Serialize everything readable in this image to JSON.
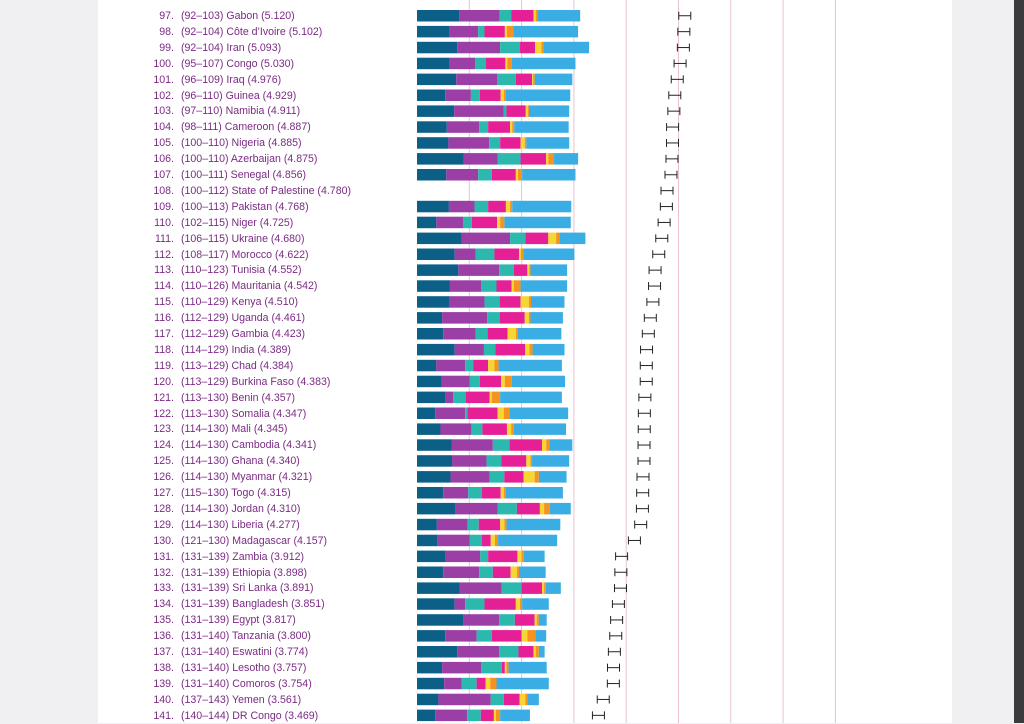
{
  "chart_data": {
    "type": "bar",
    "stacked": true,
    "orientation": "horizontal",
    "grid": true,
    "colors": {
      "text": "#7b2a84",
      "grid": "#e8c3cf",
      "segments": [
        "#0c5f86",
        "#9b3ea6",
        "#2bb8ad",
        "#e51f95",
        "#f6d633",
        "#f4931e",
        "#3aaee4"
      ]
    },
    "rows": [
      {
        "rank": "97.",
        "range": "(92–103)",
        "country": "Gabon",
        "score": "(5.120)",
        "total": 5.12,
        "segments": [
          0.81,
          0.77,
          0.22,
          0.43,
          0.04,
          0.03,
          0.82
        ]
      },
      {
        "rank": "98.",
        "range": "(92–104)",
        "country": "Côte d’Ivoire",
        "score": "(5.102)",
        "total": 5.102,
        "segments": [
          0.62,
          0.55,
          0.12,
          0.39,
          0.04,
          0.12,
          1.24
        ]
      },
      {
        "rank": "99.",
        "range": "(92–104)",
        "country": "Iran",
        "score": "(5.093)",
        "total": 5.093,
        "segments": [
          0.77,
          0.82,
          0.38,
          0.29,
          0.12,
          0.04,
          0.87
        ]
      },
      {
        "rank": "100.",
        "range": "(95–107)",
        "country": "Congo",
        "score": "(5.030)",
        "total": 5.03,
        "segments": [
          0.62,
          0.49,
          0.21,
          0.37,
          0.04,
          0.08,
          1.22
        ]
      },
      {
        "rank": "101.",
        "range": "(96–109)",
        "country": "Iraq",
        "score": "(4.976)",
        "total": 4.976,
        "segments": [
          0.75,
          0.78,
          0.36,
          0.31,
          0.02,
          0.03,
          0.72
        ]
      },
      {
        "rank": "102.",
        "range": "(96–110)",
        "country": "Guinea",
        "score": "(4.929)",
        "total": 4.929,
        "segments": [
          0.54,
          0.49,
          0.17,
          0.4,
          0.06,
          0.04,
          1.23
        ]
      },
      {
        "rank": "103.",
        "range": "(97–110)",
        "country": "Namibia",
        "score": "(4.911)",
        "total": 4.911,
        "segments": [
          0.71,
          0.95,
          0.05,
          0.37,
          0.04,
          0.02,
          0.77
        ]
      },
      {
        "rank": "104.",
        "range": "(98–111)",
        "country": "Cameroon",
        "score": "(4.887)",
        "total": 4.887,
        "segments": [
          0.57,
          0.62,
          0.17,
          0.42,
          0.04,
          0.04,
          1.04
        ]
      },
      {
        "rank": "105.",
        "range": "(100–110)",
        "country": "Nigeria",
        "score": "(4.885)",
        "total": 4.885,
        "segments": [
          0.6,
          0.78,
          0.21,
          0.39,
          0.08,
          0.03,
          0.82
        ]
      },
      {
        "rank": "106.",
        "range": "(100–110)",
        "country": "Azerbaijan",
        "score": "(4.875)",
        "total": 4.875,
        "segments": [
          0.89,
          0.65,
          0.44,
          0.49,
          0.04,
          0.11,
          0.46
        ]
      },
      {
        "rank": "107.",
        "range": "(100–111)",
        "country": "Senegal",
        "score": "(4.856)",
        "total": 4.856,
        "segments": [
          0.56,
          0.61,
          0.26,
          0.46,
          0.04,
          0.08,
          1.02
        ]
      },
      {
        "rank": "108.",
        "range": "(100–112)",
        "country": "State of Palestine",
        "score": "(4.780)",
        "total": 4.78,
        "segments": []
      },
      {
        "rank": "109.",
        "range": "(100–113)",
        "country": "Pakistan",
        "score": "(4.768)",
        "total": 4.768,
        "segments": [
          0.61,
          0.49,
          0.26,
          0.34,
          0.08,
          0.04,
          1.13
        ]
      },
      {
        "rank": "110.",
        "range": "(102–115)",
        "country": "Niger",
        "score": "(4.725)",
        "total": 4.725,
        "segments": [
          0.37,
          0.51,
          0.17,
          0.48,
          0.06,
          0.08,
          1.27
        ]
      },
      {
        "rank": "111.",
        "range": "(106–115)",
        "country": "Ukraine",
        "score": "(4.680)",
        "total": 4.68,
        "segments": [
          0.85,
          0.93,
          0.29,
          0.44,
          0.15,
          0.06,
          0.5
        ]
      },
      {
        "rank": "112.",
        "range": "(108–117)",
        "country": "Morocco",
        "score": "(4.622)",
        "total": 4.622,
        "segments": [
          0.72,
          0.4,
          0.36,
          0.47,
          0.04,
          0.04,
          0.98
        ]
      },
      {
        "rank": "113.",
        "range": "(110–123)",
        "country": "Tunisia",
        "score": "(4.552)",
        "total": 4.552,
        "segments": [
          0.79,
          0.78,
          0.28,
          0.26,
          0.04,
          0.02,
          0.7
        ]
      },
      {
        "rank": "114.",
        "range": "(110–126)",
        "country": "Mauritania",
        "score": "(4.542)",
        "total": 4.542,
        "segments": [
          0.63,
          0.6,
          0.29,
          0.29,
          0.04,
          0.13,
          0.89
        ]
      },
      {
        "rank": "115.",
        "range": "(110–129)",
        "country": "Kenya",
        "score": "(4.510)",
        "total": 4.51,
        "segments": [
          0.62,
          0.67,
          0.29,
          0.4,
          0.16,
          0.04,
          0.64
        ]
      },
      {
        "rank": "116.",
        "range": "(112–129)",
        "country": "Uganda",
        "score": "(4.461)",
        "total": 4.461,
        "segments": [
          0.48,
          0.86,
          0.24,
          0.48,
          0.08,
          0.03,
          0.62
        ]
      },
      {
        "rank": "117.",
        "range": "(112–129)",
        "country": "Gambia",
        "score": "(4.423)",
        "total": 4.423,
        "segments": [
          0.5,
          0.62,
          0.23,
          0.38,
          0.16,
          0.04,
          0.83
        ]
      },
      {
        "rank": "118.",
        "range": "(114–129)",
        "country": "India",
        "score": "(4.389)",
        "total": 4.389,
        "segments": [
          0.72,
          0.56,
          0.22,
          0.57,
          0.08,
          0.06,
          0.61
        ]
      },
      {
        "rank": "119.",
        "range": "(113–129)",
        "country": "Chad",
        "score": "(4.384)",
        "total": 4.384,
        "segments": [
          0.37,
          0.55,
          0.16,
          0.28,
          0.12,
          0.08,
          1.21
        ]
      },
      {
        "rank": "120.",
        "range": "(113–129)",
        "country": "Burkina Faso",
        "score": "(4.383)",
        "total": 4.383,
        "segments": [
          0.47,
          0.54,
          0.19,
          0.41,
          0.07,
          0.13,
          1.02
        ]
      },
      {
        "rank": "121.",
        "range": "(113–130)",
        "country": "Benin",
        "score": "(4.357)",
        "total": 4.357,
        "segments": [
          0.55,
          0.14,
          0.24,
          0.46,
          0.04,
          0.16,
          1.18
        ]
      },
      {
        "rank": "122.",
        "range": "(113–130)",
        "country": "Somalia",
        "score": "(4.347)",
        "total": 4.347,
        "segments": [
          0.35,
          0.57,
          0.04,
          0.58,
          0.12,
          0.11,
          1.12
        ]
      },
      {
        "rank": "123.",
        "range": "(114–130)",
        "country": "Mali",
        "score": "(4.345)",
        "total": 4.345,
        "segments": [
          0.45,
          0.59,
          0.21,
          0.47,
          0.08,
          0.05,
          1.0
        ]
      },
      {
        "rank": "124.",
        "range": "(114–130)",
        "country": "Cambodia",
        "score": "(4.341)",
        "total": 4.341,
        "segments": [
          0.66,
          0.79,
          0.32,
          0.62,
          0.08,
          0.06,
          0.44
        ]
      },
      {
        "rank": "125.",
        "range": "(114–130)",
        "country": "Ghana",
        "score": "(4.340)",
        "total": 4.34,
        "segments": [
          0.67,
          0.66,
          0.28,
          0.48,
          0.08,
          0.03,
          0.71
        ]
      },
      {
        "rank": "126.",
        "range": "(114–130)",
        "country": "Myanmar",
        "score": "(4.321)",
        "total": 4.321,
        "segments": [
          0.64,
          0.75,
          0.28,
          0.37,
          0.21,
          0.08,
          0.53
        ]
      },
      {
        "rank": "127.",
        "range": "(115–130)",
        "country": "Togo",
        "score": "(4.315)",
        "total": 4.315,
        "segments": [
          0.5,
          0.48,
          0.26,
          0.36,
          0.06,
          0.04,
          1.09
        ]
      },
      {
        "rank": "128.",
        "range": "(114–130)",
        "country": "Jordan",
        "score": "(4.310)",
        "total": 4.31,
        "segments": [
          0.74,
          0.8,
          0.37,
          0.44,
          0.08,
          0.11,
          0.4
        ]
      },
      {
        "rank": "129.",
        "range": "(114–130)",
        "country": "Liberia",
        "score": "(4.277)",
        "total": 4.277,
        "segments": [
          0.38,
          0.59,
          0.21,
          0.41,
          0.08,
          0.04,
          1.03
        ]
      },
      {
        "rank": "130.",
        "range": "(121–130)",
        "country": "Madagascar",
        "score": "(4.157)",
        "total": 4.157,
        "segments": [
          0.39,
          0.62,
          0.23,
          0.17,
          0.08,
          0.06,
          1.13
        ]
      },
      {
        "rank": "131.",
        "range": "(131–139)",
        "country": "Zambia",
        "score": "(3.912)",
        "total": 3.912,
        "segments": [
          0.55,
          0.66,
          0.15,
          0.56,
          0.08,
          0.04,
          0.4
        ]
      },
      {
        "rank": "132.",
        "range": "(131–139)",
        "country": "Ethiopia",
        "score": "(3.898)",
        "total": 3.898,
        "segments": [
          0.5,
          0.69,
          0.26,
          0.34,
          0.12,
          0.04,
          0.51
        ]
      },
      {
        "rank": "133.",
        "range": "(131–139)",
        "country": "Sri Lanka",
        "score": "(3.891)",
        "total": 3.891,
        "segments": [
          0.82,
          0.8,
          0.38,
          0.39,
          0.04,
          0.03,
          0.29
        ]
      },
      {
        "rank": "134.",
        "range": "(131–139)",
        "country": "Bangladesh",
        "score": "(3.851)",
        "total": 3.851,
        "segments": [
          0.72,
          0.2,
          0.37,
          0.6,
          0.08,
          0.04,
          0.51
        ]
      },
      {
        "rank": "135.",
        "range": "(131–139)",
        "country": "Egypt",
        "score": "(3.817)",
        "total": 3.817,
        "segments": [
          0.88,
          0.69,
          0.3,
          0.38,
          0.04,
          0.04,
          0.15
        ]
      },
      {
        "rank": "136.",
        "range": "(131–140)",
        "country": "Tanzania",
        "score": "(3.800)",
        "total": 3.8,
        "segments": [
          0.54,
          0.6,
          0.29,
          0.57,
          0.11,
          0.15,
          0.21
        ]
      },
      {
        "rank": "137.",
        "range": "(131–140)",
        "country": "Eswatini",
        "score": "(3.774)",
        "total": 3.774,
        "segments": [
          0.77,
          0.8,
          0.37,
          0.29,
          0.04,
          0.06,
          0.11
        ]
      },
      {
        "rank": "138.",
        "range": "(131–140)",
        "country": "Lesotho",
        "score": "(3.757)",
        "total": 3.757,
        "segments": [
          0.48,
          0.75,
          0.39,
          0.06,
          0.03,
          0.04,
          0.73
        ]
      },
      {
        "rank": "139.",
        "range": "(131–140)",
        "country": "Comoros",
        "score": "(3.754)",
        "total": 3.754,
        "segments": [
          0.52,
          0.33,
          0.29,
          0.17,
          0.09,
          0.12,
          1.0
        ]
      },
      {
        "rank": "140.",
        "range": "(137–143)",
        "country": "Yemen",
        "score": "(3.561)",
        "total": 3.561,
        "segments": [
          0.41,
          1.0,
          0.25,
          0.3,
          0.11,
          0.04,
          0.22
        ]
      },
      {
        "rank": "141.",
        "range": "(140–144)",
        "country": "DR Congo",
        "score": "(3.469)",
        "total": 3.469,
        "segments": [
          0.35,
          0.61,
          0.26,
          0.25,
          0.04,
          0.08,
          0.57
        ]
      }
    ]
  }
}
